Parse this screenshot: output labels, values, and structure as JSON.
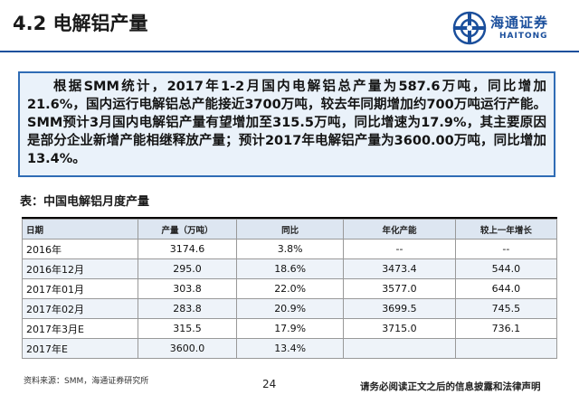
{
  "header": {
    "title": "4.2 电解铝产量",
    "logo_cn": "海通证券",
    "logo_en": "HAITONG",
    "brand_color": "#1b4f9c"
  },
  "summary": {
    "text": "根据SMM统计，2017年1-2月国内电解铝总产量为587.6万吨，同比增加21.6%，国内运行电解铝总产能接近3700万吨，较去年同期增加约700万吨运行产能。SMM预计3月国内电解铝产量有望增加至315.5万吨，同比增速为17.9%，其主要原因是部分企业新增产能相继释放产量；预计2017年电解铝产量为3600.00万吨，同比增加13.4%。",
    "border_color": "#2f6cb5",
    "background": "#eaf2fa"
  },
  "table": {
    "caption": "表：中国电解铝月度产量",
    "headers": {
      "date": "日期",
      "production": "产量（万吨）",
      "yoy": "同比",
      "capacity": "年化产能",
      "increase": "较上一年增长"
    },
    "rows": [
      {
        "date": "2016年",
        "production": "3174.6",
        "yoy": "3.8%",
        "capacity": "--",
        "increase": "--"
      },
      {
        "date": "2016年12月",
        "production": "295.0",
        "yoy": "18.6%",
        "capacity": "3473.4",
        "increase": "544.0"
      },
      {
        "date": "2017年01月",
        "production": "303.8",
        "yoy": "22.0%",
        "capacity": "3577.0",
        "increase": "644.0"
      },
      {
        "date": "2017年02月",
        "production": "283.8",
        "yoy": "20.9%",
        "capacity": "3699.5",
        "increase": "745.5"
      },
      {
        "date": "2017年3月E",
        "production": "315.5",
        "yoy": "17.9%",
        "capacity": "3715.0",
        "increase": "736.1"
      },
      {
        "date": "2017年E",
        "production": "3600.0",
        "yoy": "13.4%",
        "capacity": "",
        "increase": ""
      }
    ]
  },
  "footer": {
    "source": "资料来源：SMM，海通证券研究所",
    "page_number": "24",
    "disclaimer": "请务必阅读正文之后的信息披露和法律声明"
  }
}
